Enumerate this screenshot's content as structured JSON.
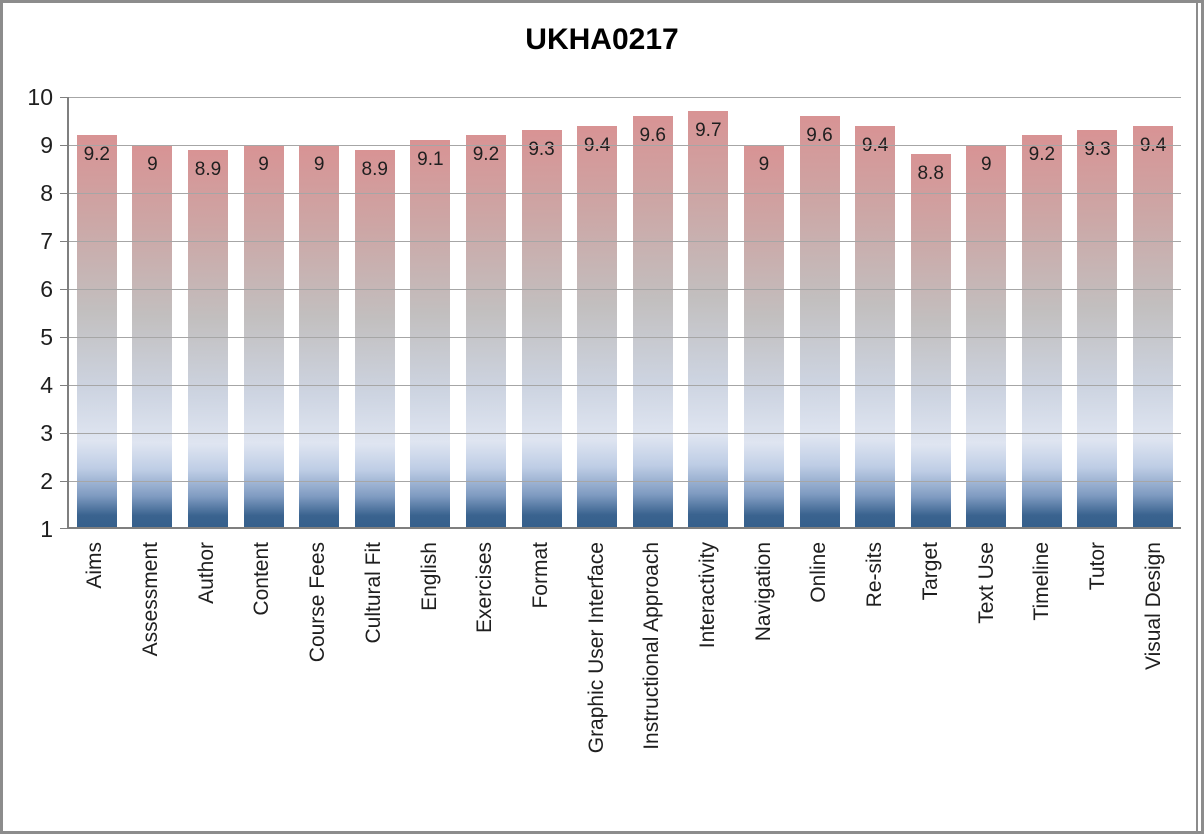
{
  "window": {
    "background": "#FFFFFF",
    "frame_border_color": "#8C8C8C"
  },
  "chart_data": {
    "type": "bar",
    "title": "UKHA0217",
    "categories": [
      "Aims",
      "Assessment",
      "Author",
      "Content",
      "Course Fees",
      "Cultural Fit",
      "English",
      "Exercises",
      "Format",
      "Graphic User Interface",
      "Instructional Approach",
      "Interactivity",
      "Navigation",
      "Online",
      "Re-sits",
      "Target",
      "Text Use",
      "Timeline",
      "Tutor",
      "Visual Design"
    ],
    "values": [
      9.2,
      9,
      8.9,
      9,
      9,
      8.9,
      9.1,
      9.2,
      9.3,
      9.4,
      9.6,
      9.7,
      9,
      9.6,
      9.4,
      8.8,
      9,
      9.2,
      9.3,
      9.4
    ],
    "data_labels": [
      "9.2",
      "9",
      "8.9",
      "9",
      "9",
      "8.9",
      "9.1",
      "9.2",
      "9.3",
      "9.4",
      "9.6",
      "9.7",
      "9",
      "9.6",
      "9.4",
      "8.8",
      "9",
      "9.2",
      "9.3",
      "9.4"
    ],
    "xlabel": "",
    "ylabel": "",
    "ylim": [
      1,
      10
    ],
    "yticks": [
      10,
      9,
      8,
      7,
      6,
      5,
      4,
      3,
      2,
      1
    ],
    "grid": true,
    "legend_position": "none",
    "x_label_rotation_degrees": 90,
    "styles": {
      "bar_gradient_stops": [
        "#D89394 0%",
        "#CCA7A6 22%",
        "#C2BFBF 45%",
        "#CDD4E1 65%",
        "#DFE5F1 78%",
        "#BECDE5 85%",
        "#7F9BC1 92%",
        "#3A638F 97%",
        "#36608C 100%"
      ],
      "gridline_color": "#A6A6A6",
      "axis_color": "#7F7F7F",
      "text_color": "#1F1F1F",
      "title_color": "#000000"
    }
  }
}
